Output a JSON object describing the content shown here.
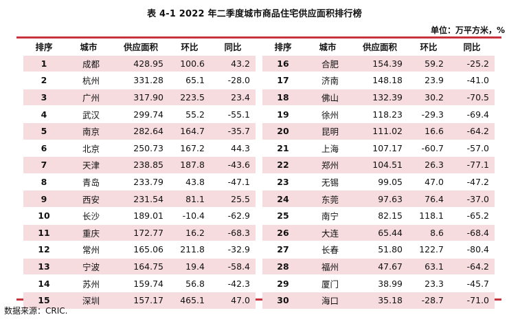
{
  "title": "表 4-1   2022 年二季度城市商品住宅供应面积排行榜",
  "unit": "单位：万平方米，%",
  "headers": [
    "排序",
    "城市",
    "供应面积",
    "环比",
    "同比"
  ],
  "left_rows": [
    [
      "1",
      "成都",
      "428.95",
      "100.6",
      "43.2"
    ],
    [
      "2",
      "杭州",
      "331.28",
      "65.1",
      "-28.0"
    ],
    [
      "3",
      "广州",
      "317.90",
      "223.5",
      "23.4"
    ],
    [
      "4",
      "武汉",
      "299.74",
      "55.2",
      "-55.1"
    ],
    [
      "5",
      "南京",
      "282.64",
      "164.7",
      "-35.7"
    ],
    [
      "6",
      "北京",
      "250.73",
      "167.2",
      "44.3"
    ],
    [
      "7",
      "天津",
      "238.85",
      "187.8",
      "-43.6"
    ],
    [
      "8",
      "青岛",
      "233.79",
      "43.8",
      "-47.1"
    ],
    [
      "9",
      "西安",
      "231.54",
      "81.1",
      "25.5"
    ],
    [
      "10",
      "长沙",
      "189.01",
      "-10.4",
      "-62.9"
    ],
    [
      "11",
      "重庆",
      "172.77",
      "16.2",
      "-68.3"
    ],
    [
      "12",
      "常州",
      "165.06",
      "211.8",
      "-32.9"
    ],
    [
      "13",
      "宁波",
      "164.75",
      "19.4",
      "-58.4"
    ],
    [
      "14",
      "苏州",
      "159.74",
      "56.8",
      "-42.3"
    ],
    [
      "15",
      "深圳",
      "157.17",
      "465.1",
      "47.0"
    ]
  ],
  "right_rows": [
    [
      "16",
      "合肥",
      "154.39",
      "59.2",
      "-25.2"
    ],
    [
      "17",
      "济南",
      "148.18",
      "23.9",
      "-41.0"
    ],
    [
      "18",
      "佛山",
      "132.39",
      "30.2",
      "-70.5"
    ],
    [
      "19",
      "徐州",
      "118.23",
      "-29.3",
      "-69.4"
    ],
    [
      "20",
      "昆明",
      "111.02",
      "16.6",
      "-64.2"
    ],
    [
      "21",
      "上海",
      "107.17",
      "-60.7",
      "-57.0"
    ],
    [
      "22",
      "郑州",
      "104.51",
      "26.3",
      "-77.1"
    ],
    [
      "23",
      "无锡",
      "99.05",
      "47.0",
      "-47.2"
    ],
    [
      "24",
      "东莞",
      "97.63",
      "76.4",
      "-37.0"
    ],
    [
      "25",
      "南宁",
      "82.15",
      "118.1",
      "-65.2"
    ],
    [
      "26",
      "大连",
      "65.44",
      "8.6",
      "-68.4"
    ],
    [
      "27",
      "长春",
      "51.80",
      "122.7",
      "-80.4"
    ],
    [
      "28",
      "福州",
      "47.67",
      "63.1",
      "-64.2"
    ],
    [
      "29",
      "厦门",
      "38.99",
      "23.3",
      "-45.7"
    ],
    [
      "30",
      "海口",
      "35.18",
      "-28.7",
      "-71.0"
    ]
  ],
  "source": "数据来源：CRIC.",
  "colors": {
    "accent": "#c8323c",
    "stripe": "#f7dcdf"
  }
}
